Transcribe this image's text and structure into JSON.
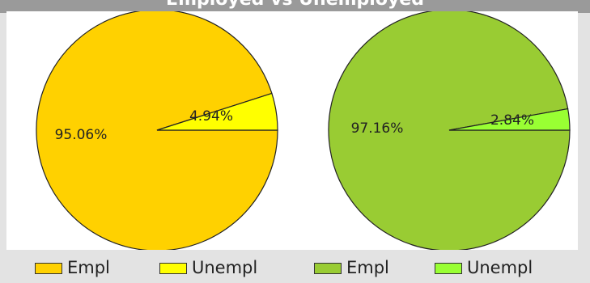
{
  "chart_title": "Employed vs Unemployed",
  "chart_data": [
    {
      "type": "pie",
      "labels": [
        "Empl",
        "Unempl"
      ],
      "values": [
        95.06,
        4.94
      ],
      "value_labels": [
        "95.06%",
        "4.94%"
      ],
      "colors": [
        "#ffd100",
        "#ffff00"
      ]
    },
    {
      "type": "pie",
      "labels": [
        "Empl",
        "Unempl"
      ],
      "values": [
        97.16,
        2.84
      ],
      "value_labels": [
        "97.16%",
        "2.84%"
      ],
      "colors": [
        "#99cc33",
        "#99ff33"
      ]
    }
  ],
  "legend": {
    "placement": "bottom",
    "items": [
      {
        "label": "Empl",
        "color": "#ffd100"
      },
      {
        "label": "Unempl",
        "color": "#ffff00"
      },
      {
        "label": "Empl",
        "color": "#99cc33"
      },
      {
        "label": "Unempl",
        "color": "#99ff33"
      }
    ]
  }
}
